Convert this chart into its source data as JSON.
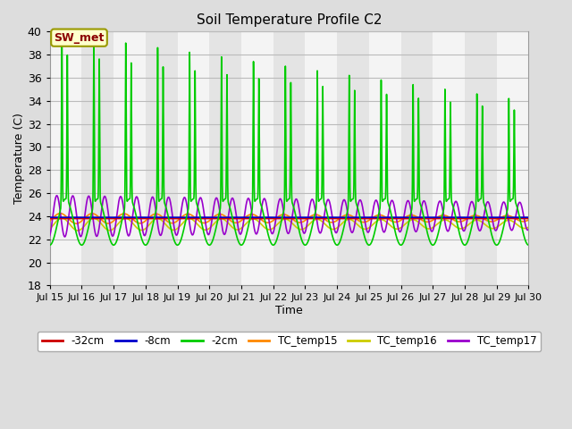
{
  "title": "Soil Temperature Profile C2",
  "xlabel": "Time",
  "ylabel": "Temperature (C)",
  "ylim": [
    18,
    40
  ],
  "yticks": [
    18,
    20,
    22,
    24,
    26,
    28,
    30,
    32,
    34,
    36,
    38,
    40
  ],
  "xtick_labels": [
    "Jul 15",
    "Jul 16",
    "Jul 17",
    "Jul 18",
    "Jul 19",
    "Jul 20",
    "Jul 21",
    "Jul 22",
    "Jul 23",
    "Jul 24",
    "Jul 25",
    "Jul 26",
    "Jul 27",
    "Jul 28",
    "Jul 29",
    "Jul 30"
  ],
  "xtick_positions": [
    0,
    1,
    2,
    3,
    4,
    5,
    6,
    7,
    8,
    9,
    10,
    11,
    12,
    13,
    14,
    15
  ],
  "annotation_text": "SW_met",
  "series": {
    "-32cm": {
      "color": "#cc0000",
      "linewidth": 1.2
    },
    "-8cm": {
      "color": "#0000cc",
      "linewidth": 1.2
    },
    "-2cm": {
      "color": "#00cc00",
      "linewidth": 1.2
    },
    "TC_temp15": {
      "color": "#ff8800",
      "linewidth": 1.2
    },
    "TC_temp16": {
      "color": "#cccc00",
      "linewidth": 1.2
    },
    "TC_temp17": {
      "color": "#9900cc",
      "linewidth": 1.2
    }
  },
  "band_colors": [
    "#f4f4f4",
    "#e4e4e4"
  ],
  "fig_facecolor": "#dddddd",
  "grid_color": "#bbbbbb"
}
